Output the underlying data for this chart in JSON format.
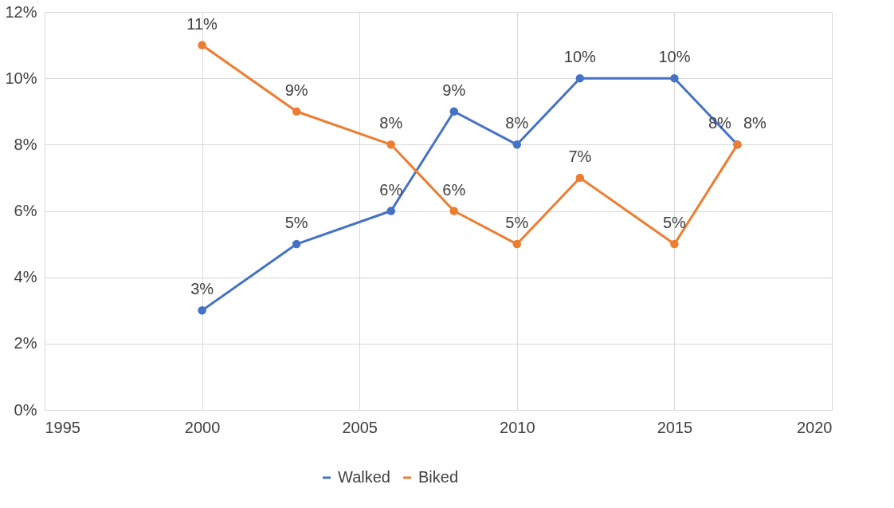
{
  "chart_data": {
    "type": "line",
    "x": [
      2000,
      2003,
      2006,
      2008,
      2010,
      2012,
      2015,
      2017
    ],
    "series": [
      {
        "name": "Walked",
        "color": "#4472c4",
        "values": [
          3,
          5,
          6,
          9,
          8,
          10,
          10,
          8
        ],
        "value_labels": [
          "3%",
          "5%",
          "6%",
          "9%",
          "8%",
          "10%",
          "10%",
          "8%"
        ]
      },
      {
        "name": "Biked",
        "color": "#ed7d31",
        "values": [
          11,
          9,
          8,
          6,
          5,
          7,
          5,
          8
        ],
        "value_labels": [
          "11%",
          "9%",
          "8%",
          "6%",
          "5%",
          "7%",
          "5%",
          "8%"
        ]
      }
    ],
    "xlim": [
      1995,
      2020
    ],
    "xticks": [
      1995,
      2000,
      2005,
      2010,
      2015,
      2020
    ],
    "ylim": [
      0,
      12
    ],
    "yticks": [
      {
        "value": 0,
        "label": "0%"
      },
      {
        "value": 2,
        "label": "2%"
      },
      {
        "value": 4,
        "label": "4%"
      },
      {
        "value": 6,
        "label": "6%"
      },
      {
        "value": 8,
        "label": "8%"
      },
      {
        "value": 10,
        "label": "10%"
      },
      {
        "value": 12,
        "label": "12%"
      }
    ],
    "grid": true,
    "legend": "bottom",
    "marker": "circle",
    "line_style": "solid"
  }
}
